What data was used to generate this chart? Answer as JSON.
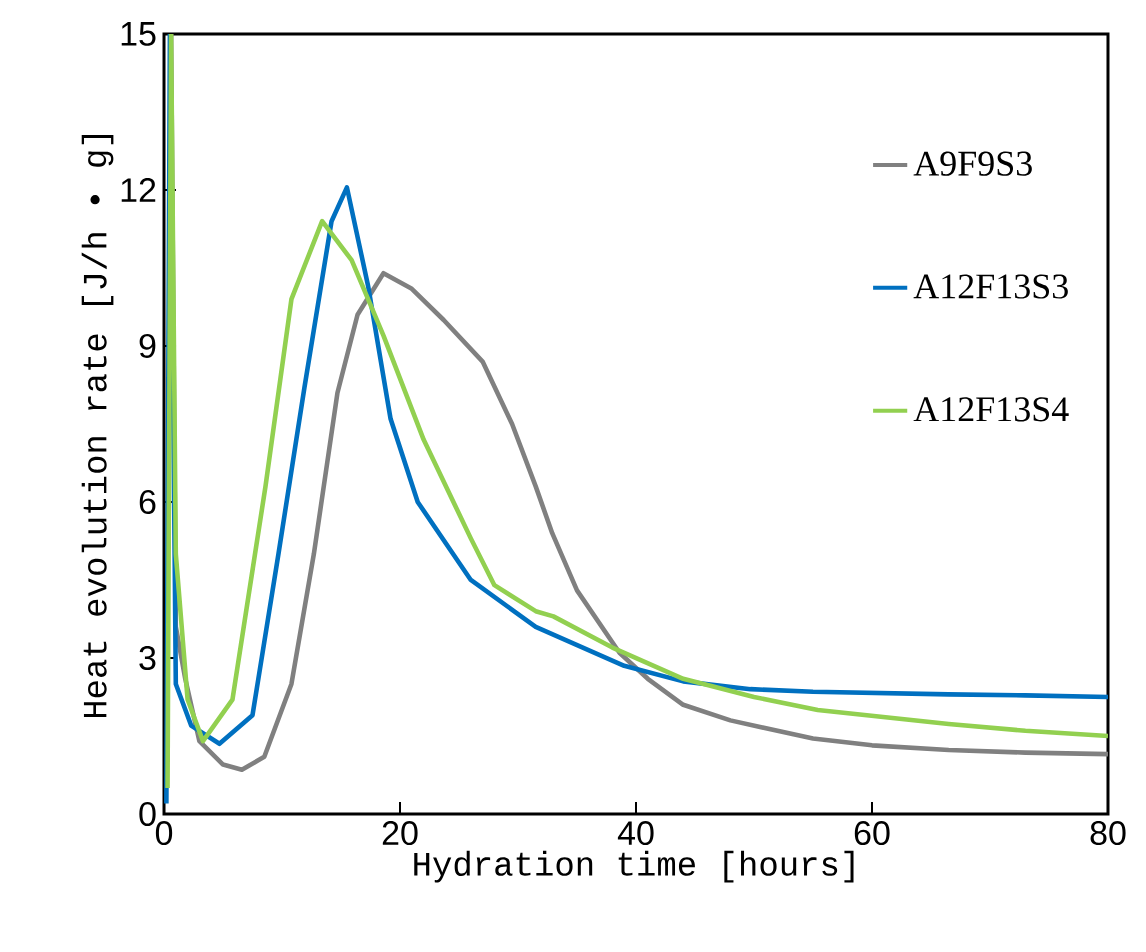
{
  "chart_data": {
    "type": "line",
    "xlabel": "Hydration time [hours]",
    "ylabel": "Heat evolution rate [J/h • g]",
    "xlim": [
      0,
      80
    ],
    "ylim": [
      0,
      15
    ],
    "xticks": [
      0,
      20,
      40,
      60,
      80
    ],
    "yticks": [
      0,
      3,
      6,
      9,
      12,
      15
    ],
    "grid": false,
    "legend": "right",
    "marker": "none",
    "line_style": "solid",
    "series": [
      {
        "name": "A9F9S3",
        "color": "#808080",
        "x": [
          0.6,
          1,
          1.8,
          3,
          5,
          6.6,
          8.5,
          10.8,
          12.7,
          14.7,
          16.4,
          18.6,
          21,
          23.7,
          27,
          29.5,
          31.5,
          32.9,
          35,
          38.6,
          41,
          44,
          48,
          55,
          60,
          66.5,
          73,
          80
        ],
        "values": [
          15,
          3.6,
          2.6,
          1.4,
          0.95,
          0.85,
          1.1,
          2.5,
          5.0,
          8.1,
          9.6,
          10.4,
          10.1,
          9.5,
          8.7,
          7.5,
          6.3,
          5.4,
          4.3,
          3.1,
          2.6,
          2.1,
          1.8,
          1.45,
          1.32,
          1.23,
          1.18,
          1.15
        ]
      },
      {
        "name": "A12F13S3",
        "color": "#0070c0",
        "x": [
          0.2,
          0.5,
          1,
          2.3,
          4.7,
          7.5,
          9.7,
          11.9,
          14.2,
          15.5,
          17.3,
          19.2,
          21.5,
          26,
          31.5,
          39,
          44,
          49.7,
          55,
          66.5,
          73,
          80
        ],
        "values": [
          0.2,
          15,
          2.5,
          1.7,
          1.35,
          1.9,
          5.0,
          8.2,
          11.4,
          12.05,
          10.15,
          7.6,
          6.0,
          4.5,
          3.6,
          2.85,
          2.55,
          2.4,
          2.35,
          2.3,
          2.28,
          2.25
        ]
      },
      {
        "name": "A12F13S4",
        "color": "#92d050",
        "x": [
          0.3,
          0.6,
          1,
          2,
          3.3,
          5.8,
          8.6,
          10.8,
          13.4,
          15.9,
          18.6,
          22,
          26,
          28,
          31.5,
          33,
          38,
          44,
          50,
          55.4,
          66.5,
          73,
          80
        ],
        "values": [
          0.5,
          15,
          5,
          2.2,
          1.4,
          2.2,
          6.3,
          9.9,
          11.4,
          10.65,
          9.2,
          7.2,
          5.3,
          4.4,
          3.9,
          3.8,
          3.2,
          2.6,
          2.25,
          2.0,
          1.73,
          1.6,
          1.5
        ]
      }
    ]
  }
}
